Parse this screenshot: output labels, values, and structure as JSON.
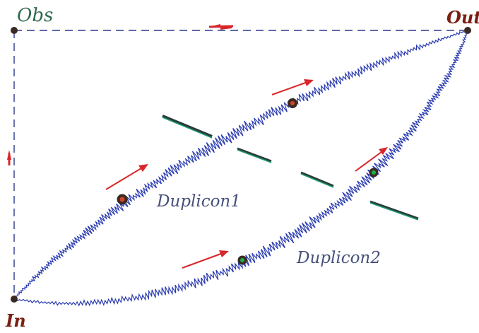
{
  "labels": {
    "obs": "Obs",
    "out": "Out",
    "in": "In",
    "duplicon1": "Duplicon1",
    "duplicon2": "Duplicon2"
  },
  "colors": {
    "path": "#2a3bb0",
    "frame": "#2c3a8a",
    "arrow": "#d8262a",
    "barDark": "#2b3b3b",
    "barGreen": "#1f9e74",
    "nodeDark": "#3a2a22",
    "beadRed": "#d8412a",
    "beadGreen": "#1fae4a"
  }
}
